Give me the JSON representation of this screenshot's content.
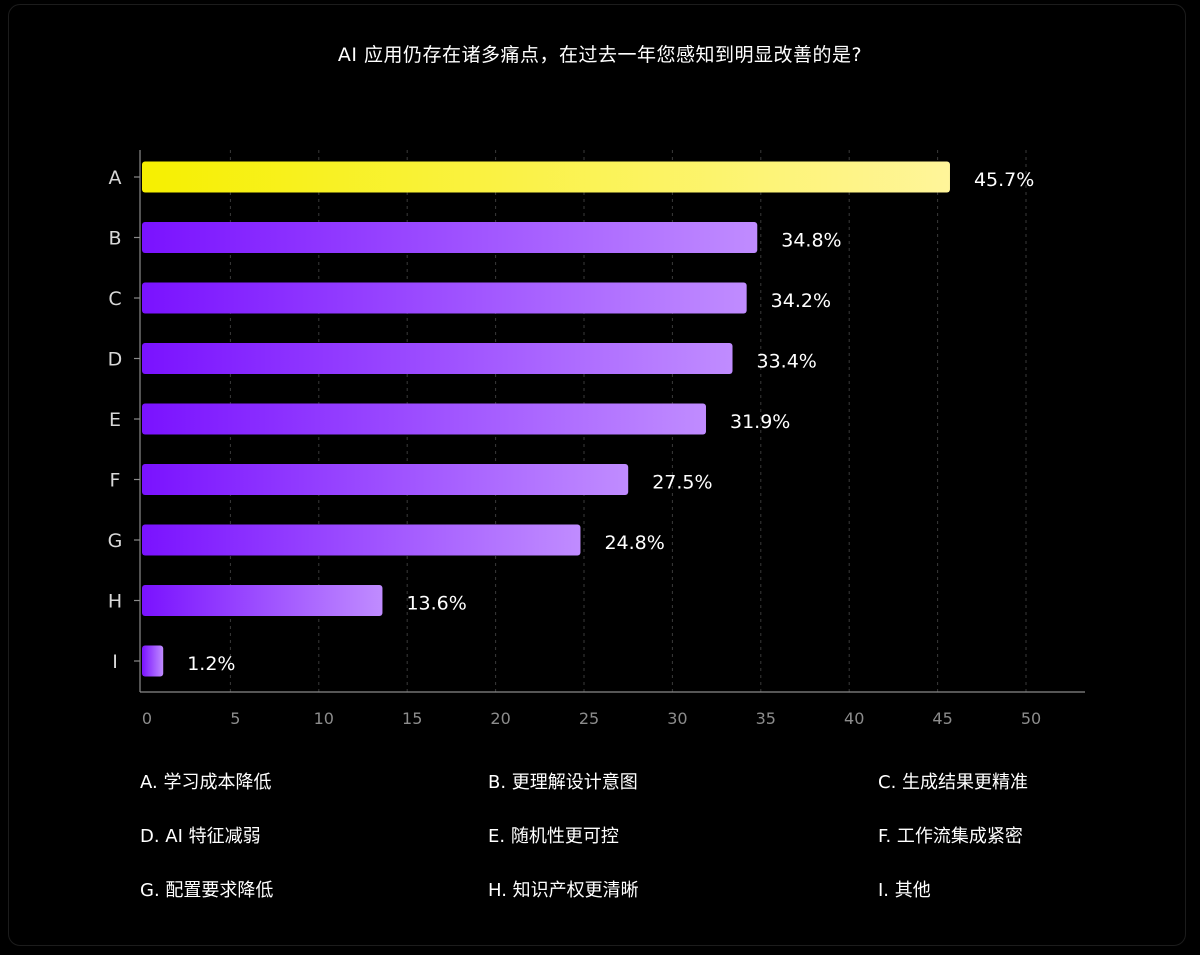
{
  "chart_data": {
    "type": "bar",
    "orientation": "horizontal",
    "title": "AI 应用仍存在诸多痛点，在过去一年您感知到明显改善的是?",
    "categories": [
      "A",
      "B",
      "C",
      "D",
      "E",
      "F",
      "G",
      "H",
      "I"
    ],
    "values": [
      45.7,
      34.8,
      34.2,
      33.4,
      31.9,
      27.5,
      24.8,
      13.6,
      1.2
    ],
    "value_labels": [
      "45.7%",
      "34.8%",
      "34.2%",
      "33.4%",
      "31.9%",
      "27.5%",
      "24.8%",
      "13.6%",
      "1.2%"
    ],
    "xlim": [
      0,
      52
    ],
    "x_ticks": [
      "0",
      "5",
      "10",
      "15",
      "20",
      "25",
      "30",
      "35",
      "40",
      "45",
      "50"
    ],
    "grid": "vertical dashed",
    "legend_placement": "bottom",
    "highlight_category": "A",
    "colors": {
      "highlight_start": "#f6f000",
      "highlight_end": "#fff59a",
      "bar_start": "#7a12ff",
      "bar_end": "#c08cff",
      "grid": "#3a3a3a",
      "axis": "#8a8a8a",
      "tick_label": "#8c8c8c",
      "value_label": "#ffffff"
    }
  },
  "legend": {
    "items": [
      "A. 学习成本降低",
      "B. 更理解设计意图",
      "C. 生成结果更精准",
      "D.  AI 特征减弱",
      "E. 随机性更可控",
      "F. 工作流集成紧密",
      "G. 配置要求降低",
      "H. 知识产权更清晰",
      "I. 其他"
    ]
  }
}
